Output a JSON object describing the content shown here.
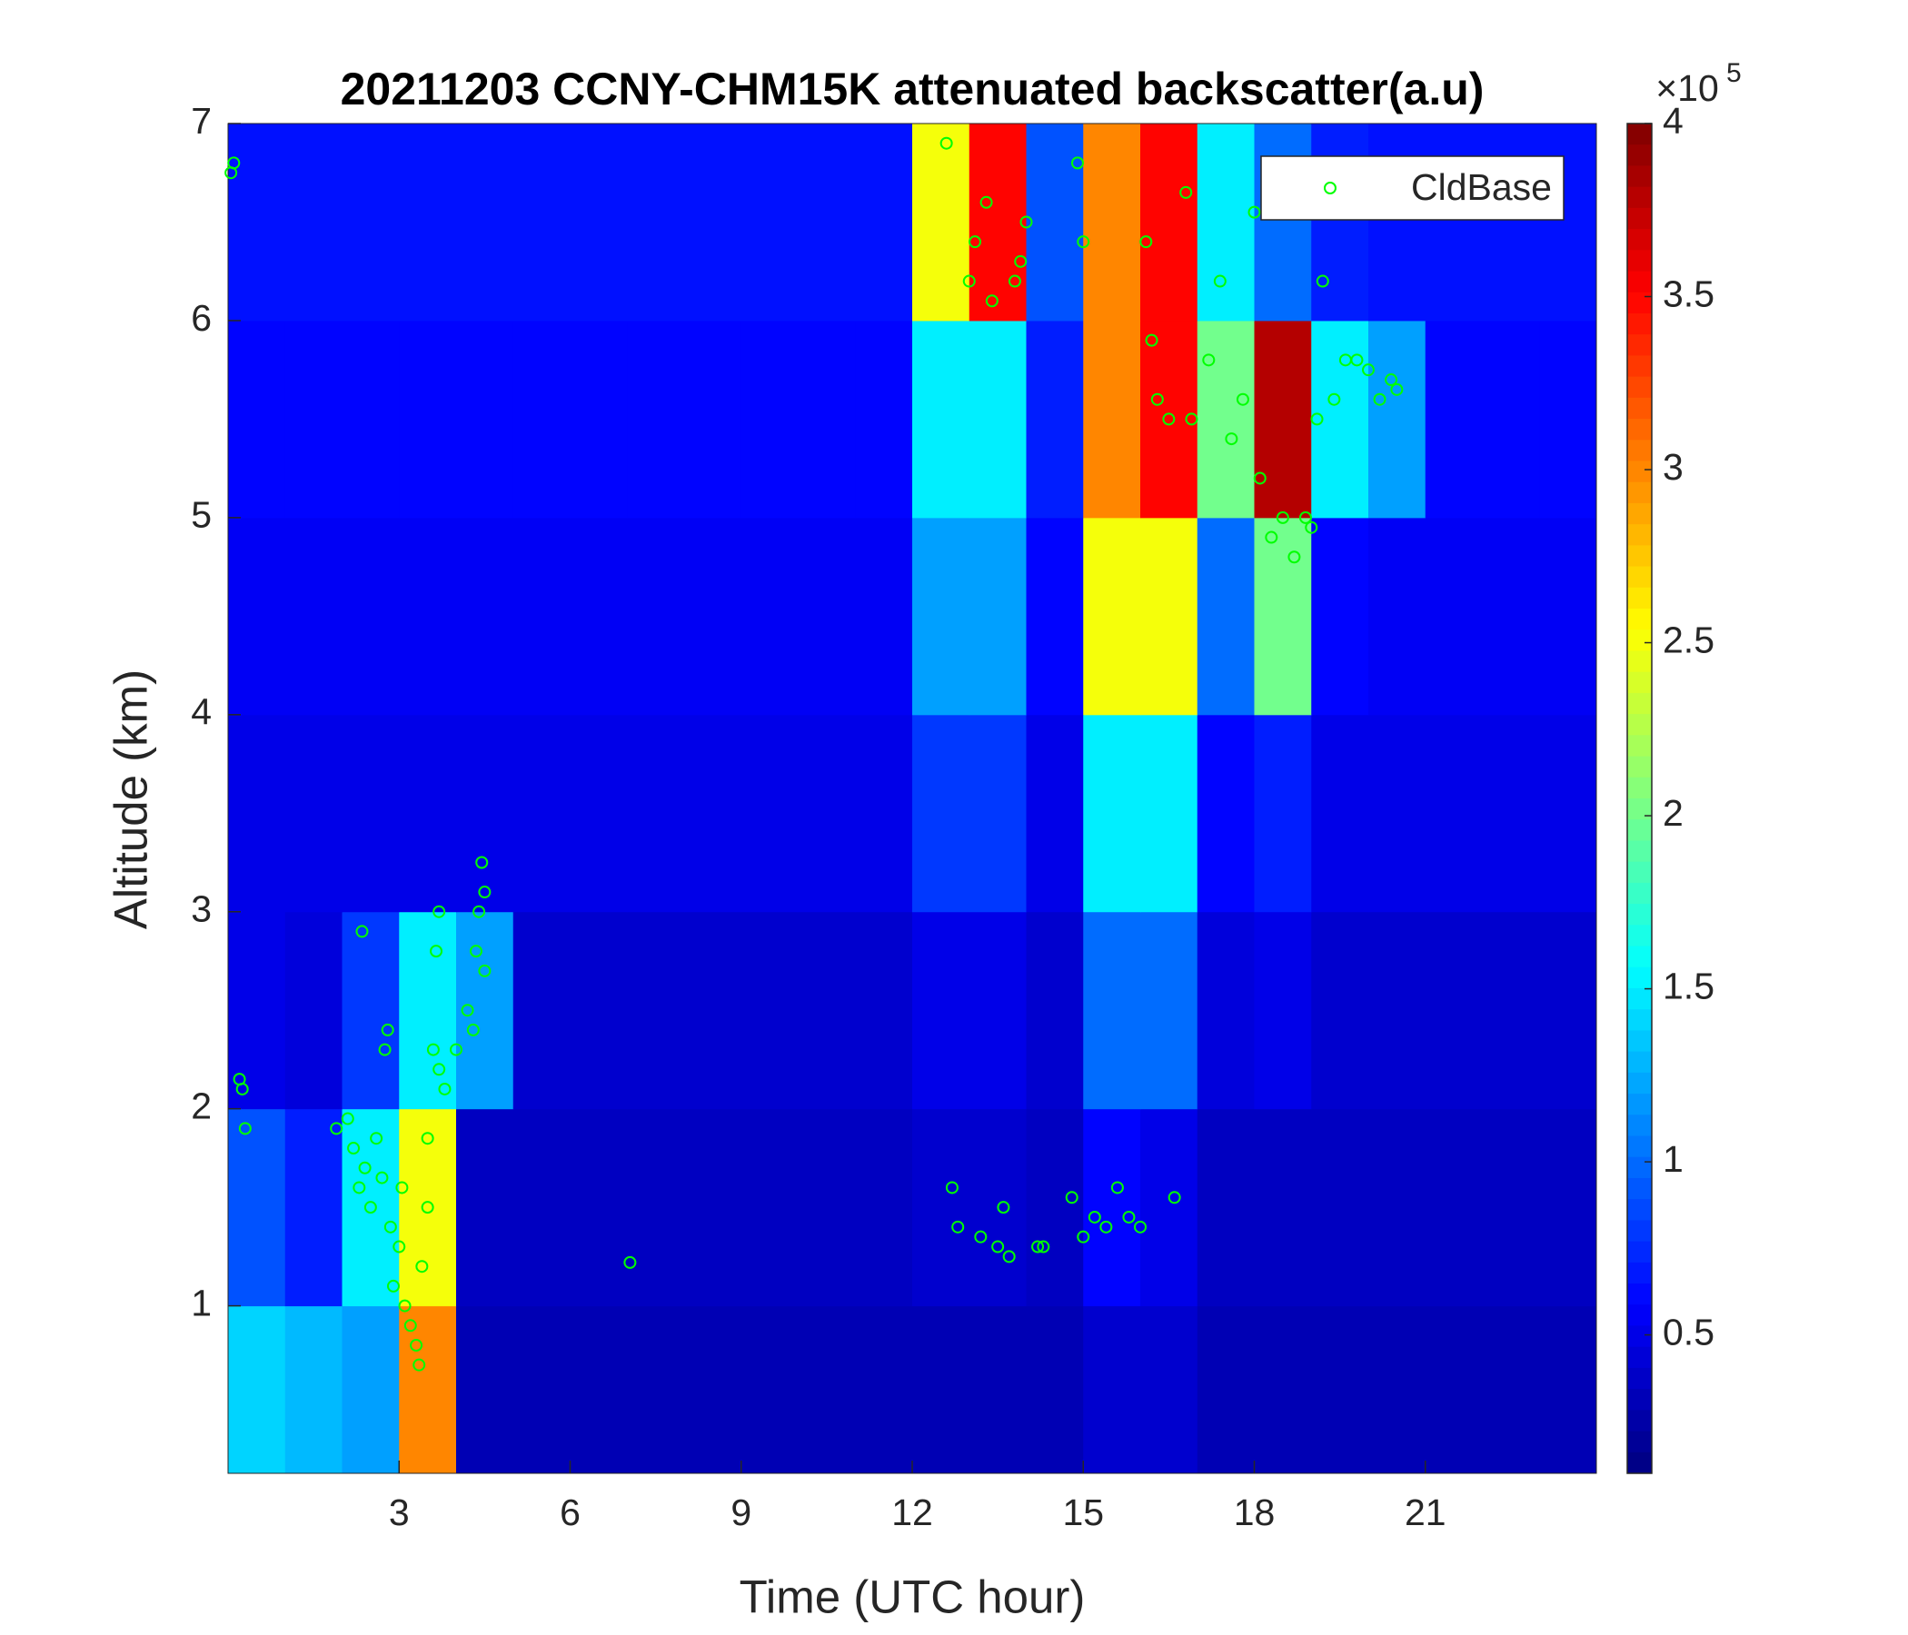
{
  "chart_data": {
    "type": "heatmap",
    "title": "20211203 CCNY-CHM15K attenuated backscatter(a.u)",
    "x_label": "Time (UTC hour)",
    "y_label": "Altitude (km)",
    "xlim": [
      0,
      24
    ],
    "ylim": [
      0.15,
      7
    ],
    "xticks": [
      3,
      6,
      9,
      12,
      15,
      18,
      21
    ],
    "yticks": [
      1,
      2,
      3,
      4,
      5,
      6,
      7
    ],
    "colormap": "jet",
    "clim": [
      10000,
      400000
    ],
    "cticks": [
      {
        "value": 50000,
        "label": "0.5"
      },
      {
        "value": 100000,
        "label": "1"
      },
      {
        "value": 150000,
        "label": "1.5"
      },
      {
        "value": 200000,
        "label": "2"
      },
      {
        "value": 250000,
        "label": "2.5"
      },
      {
        "value": 300000,
        "label": "3"
      },
      {
        "value": 350000,
        "label": "3.5"
      },
      {
        "value": 400000,
        "label": "4"
      }
    ],
    "colorbar_multiplier": {
      "base": "×10",
      "exponent": "5"
    },
    "x_edges": [
      0,
      1,
      2,
      3,
      4,
      5,
      6,
      7,
      8,
      9,
      10,
      11,
      12,
      13,
      14,
      15,
      16,
      17,
      18,
      19,
      20,
      21,
      22,
      23,
      24
    ],
    "y_edges": [
      0.15,
      1,
      2,
      3,
      4,
      5,
      6,
      7
    ],
    "z": [
      [
        140000,
        130000,
        120000,
        300000,
        30000,
        30000,
        30000,
        30000,
        30000,
        30000,
        30000,
        30000,
        30000,
        30000,
        30000,
        40000,
        40000,
        30000,
        30000,
        30000,
        30000,
        30000,
        30000,
        30000
      ],
      [
        90000,
        70000,
        150000,
        250000,
        35000,
        35000,
        35000,
        35000,
        35000,
        35000,
        35000,
        35000,
        40000,
        40000,
        35000,
        60000,
        50000,
        35000,
        35000,
        35000,
        35000,
        35000,
        35000,
        35000
      ],
      [
        50000,
        45000,
        80000,
        150000,
        120000,
        40000,
        40000,
        40000,
        40000,
        40000,
        40000,
        40000,
        50000,
        50000,
        40000,
        100000,
        100000,
        45000,
        50000,
        40000,
        40000,
        40000,
        40000,
        40000
      ],
      [
        50000,
        50000,
        50000,
        50000,
        50000,
        50000,
        50000,
        50000,
        50000,
        50000,
        50000,
        50000,
        80000,
        80000,
        50000,
        150000,
        150000,
        60000,
        70000,
        50000,
        50000,
        50000,
        50000,
        50000
      ],
      [
        55000,
        55000,
        55000,
        55000,
        55000,
        55000,
        55000,
        55000,
        55000,
        55000,
        55000,
        55000,
        120000,
        120000,
        60000,
        250000,
        250000,
        100000,
        200000,
        60000,
        55000,
        55000,
        55000,
        55000
      ],
      [
        60000,
        60000,
        60000,
        60000,
        60000,
        60000,
        60000,
        60000,
        60000,
        60000,
        60000,
        60000,
        150000,
        150000,
        70000,
        300000,
        350000,
        200000,
        380000,
        150000,
        120000,
        60000,
        60000,
        60000
      ],
      [
        65000,
        65000,
        65000,
        65000,
        65000,
        65000,
        65000,
        65000,
        65000,
        65000,
        65000,
        65000,
        250000,
        350000,
        90000,
        300000,
        350000,
        150000,
        100000,
        70000,
        65000,
        65000,
        65000,
        65000
      ]
    ],
    "scatter": {
      "name": "CldBase",
      "color": "#00ff00",
      "x": [
        0.05,
        0.1,
        0.2,
        0.25,
        0.3,
        1.9,
        2.1,
        2.2,
        2.3,
        2.35,
        2.4,
        2.5,
        2.6,
        2.7,
        2.75,
        2.8,
        2.85,
        2.9,
        3.0,
        3.05,
        3.1,
        3.2,
        3.3,
        3.35,
        3.4,
        3.5,
        3.5,
        3.6,
        3.65,
        3.7,
        3.7,
        3.8,
        4.0,
        4.2,
        4.3,
        4.35,
        4.4,
        4.45,
        4.5,
        4.5,
        7.05,
        12.6,
        12.7,
        12.8,
        13.0,
        13.1,
        13.2,
        13.3,
        13.4,
        13.5,
        13.6,
        13.7,
        13.8,
        13.9,
        14.0,
        14.2,
        14.3,
        14.8,
        14.9,
        15.0,
        15.0,
        15.2,
        15.4,
        15.6,
        15.8,
        16.0,
        16.1,
        16.2,
        16.3,
        16.5,
        16.6,
        16.8,
        16.9,
        17.2,
        17.4,
        17.6,
        17.8,
        18.0,
        18.1,
        18.3,
        18.5,
        18.7,
        18.9,
        19.0,
        19.1,
        19.2,
        19.4,
        19.6,
        19.8,
        20.0,
        20.2,
        20.4,
        20.5
      ],
      "y": [
        6.75,
        6.8,
        2.15,
        2.1,
        1.9,
        1.9,
        1.95,
        1.8,
        1.6,
        2.9,
        1.7,
        1.5,
        1.85,
        1.65,
        2.3,
        2.4,
        1.4,
        1.1,
        1.3,
        1.6,
        1.0,
        0.9,
        0.8,
        0.7,
        1.2,
        1.5,
        1.85,
        2.3,
        2.8,
        3.0,
        2.2,
        2.1,
        2.3,
        2.5,
        2.4,
        2.8,
        3.0,
        3.25,
        2.7,
        3.1,
        1.22,
        6.9,
        1.6,
        1.4,
        6.2,
        6.4,
        1.35,
        6.6,
        6.1,
        1.3,
        1.5,
        1.25,
        6.2,
        6.3,
        6.5,
        1.3,
        1.3,
        1.55,
        6.8,
        1.35,
        6.4,
        1.45,
        1.4,
        1.6,
        1.45,
        1.4,
        6.4,
        5.9,
        5.6,
        5.5,
        1.55,
        6.65,
        5.5,
        5.8,
        6.2,
        5.4,
        5.6,
        6.55,
        5.2,
        4.9,
        5.0,
        4.8,
        5.0,
        4.95,
        5.5,
        6.2,
        5.6,
        5.8,
        5.8,
        5.75,
        5.6,
        5.7,
        5.65
      ]
    }
  }
}
